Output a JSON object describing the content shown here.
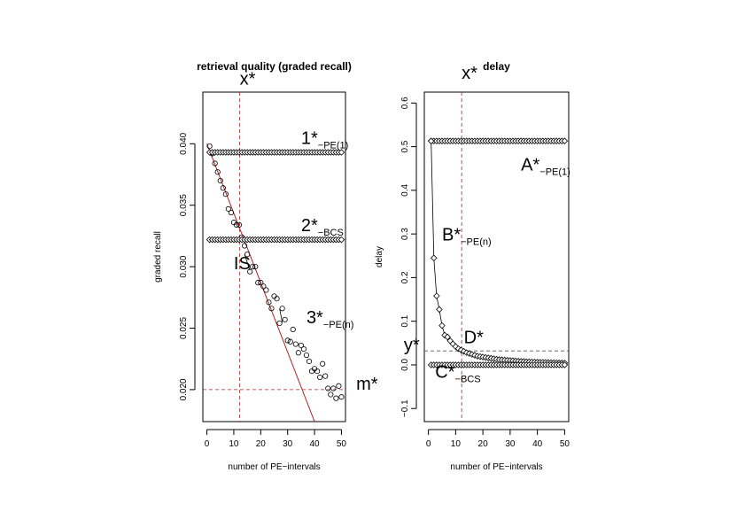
{
  "chart_data": [
    {
      "type": "scatter",
      "title": "retrieval quality (graded recall)",
      "xlabel": "number of PE−intervals",
      "ylabel": "graded recall",
      "xlim": [
        -1.5,
        51.5
      ],
      "ylim": [
        0.0174,
        0.0442
      ],
      "xticks": [
        0,
        10,
        20,
        30,
        40,
        50
      ],
      "yticks": [
        0.02,
        0.025,
        0.03,
        0.035,
        0.04
      ],
      "ytick_labels": [
        "0.020",
        "0.025",
        "0.030",
        "0.035",
        "0.040"
      ],
      "grid": false,
      "series": [
        {
          "marker": "circle",
          "x": [
            1,
            2,
            3,
            4,
            5,
            6,
            7,
            8,
            9,
            10,
            11,
            12,
            13,
            14,
            15,
            16,
            17,
            18,
            19,
            20,
            21,
            22,
            23,
            24,
            25,
            26,
            27,
            28,
            29,
            30,
            31,
            32,
            33,
            34,
            35,
            36,
            37,
            38,
            39,
            40,
            41,
            42,
            43,
            44,
            45,
            46,
            47,
            48,
            49,
            50
          ],
          "y": [
            0.0398,
            0.0392,
            0.0384,
            0.0377,
            0.037,
            0.0364,
            0.0359,
            0.0347,
            0.0344,
            0.0336,
            0.0334,
            0.0334,
            0.0324,
            0.0317,
            0.031,
            0.0296,
            0.03,
            0.03,
            0.0287,
            0.0287,
            0.0284,
            0.0281,
            0.0271,
            0.0266,
            0.0276,
            0.0274,
            0.0254,
            0.0266,
            0.0257,
            0.024,
            0.0239,
            0.0249,
            0.0237,
            0.023,
            0.0236,
            0.0233,
            0.0228,
            0.0223,
            0.0215,
            0.0217,
            0.0215,
            0.021,
            0.0221,
            0.0211,
            0.0201,
            0.0196,
            0.0201,
            0.0193,
            0.0203,
            0.0194
          ]
        },
        {
          "marker": "diamond",
          "x": [
            1,
            2,
            3,
            4,
            5,
            6,
            7,
            8,
            9,
            10,
            11,
            12,
            13,
            14,
            15,
            16,
            17,
            18,
            19,
            20,
            21,
            22,
            23,
            24,
            25,
            26,
            27,
            28,
            29,
            30,
            31,
            32,
            33,
            34,
            35,
            36,
            37,
            38,
            39,
            40,
            41,
            42,
            43,
            44,
            45,
            46,
            47,
            48,
            49,
            50
          ],
          "y": [
            0.0393,
            0.0393,
            0.0393,
            0.0393,
            0.0393,
            0.0393,
            0.0393,
            0.0393,
            0.0393,
            0.0393,
            0.0393,
            0.0393,
            0.0393,
            0.0393,
            0.0393,
            0.0393,
            0.0393,
            0.0393,
            0.0393,
            0.0393,
            0.0393,
            0.0393,
            0.0393,
            0.0393,
            0.0393,
            0.0393,
            0.0393,
            0.0393,
            0.0393,
            0.0393,
            0.0393,
            0.0393,
            0.0393,
            0.0393,
            0.0393,
            0.0393,
            0.0393,
            0.0393,
            0.0393,
            0.0393,
            0.0393,
            0.0393,
            0.0393,
            0.0393,
            0.0393,
            0.0393,
            0.0393,
            0.0393,
            0.0393,
            0.0393
          ]
        },
        {
          "marker": "diamond",
          "x": [
            1,
            2,
            3,
            4,
            5,
            6,
            7,
            8,
            9,
            10,
            11,
            12,
            13,
            14,
            15,
            16,
            17,
            18,
            19,
            20,
            21,
            22,
            23,
            24,
            25,
            26,
            27,
            28,
            29,
            30,
            31,
            32,
            33,
            34,
            35,
            36,
            37,
            38,
            39,
            40,
            41,
            42,
            43,
            44,
            45,
            46,
            47,
            48,
            49,
            50
          ],
          "y": [
            0.0322,
            0.0322,
            0.0322,
            0.0322,
            0.0322,
            0.0322,
            0.0322,
            0.0322,
            0.0322,
            0.0322,
            0.0322,
            0.0322,
            0.0322,
            0.0322,
            0.0322,
            0.0322,
            0.0322,
            0.0322,
            0.0322,
            0.0322,
            0.0322,
            0.0322,
            0.0322,
            0.0322,
            0.0322,
            0.0322,
            0.0322,
            0.0322,
            0.0322,
            0.0322,
            0.0322,
            0.0322,
            0.0322,
            0.0322,
            0.0322,
            0.0322,
            0.0322,
            0.0322,
            0.0322,
            0.0322,
            0.0322,
            0.0322,
            0.0322,
            0.0322,
            0.0322,
            0.0322,
            0.0322,
            0.0322,
            0.0322,
            0.0322
          ]
        }
      ],
      "fit_line": {
        "color": "#b22222",
        "x": [
          0,
          40
        ],
        "y": [
          0.04,
          0.0174
        ]
      },
      "connector_segments": [
        {
          "x": [
            14,
            16
          ],
          "y": [
            0.031,
            0.0297
          ]
        },
        {
          "x": [
            27,
            28
          ],
          "y": [
            0.0266,
            0.0255
          ]
        }
      ],
      "vline": {
        "x": 12.2,
        "color": "#b22222",
        "dash": true
      },
      "hline": {
        "y": 0.02,
        "color": "#b22222",
        "dash": true
      },
      "annotations": [
        {
          "main": "x*",
          "sub": "",
          "x": 12.2,
          "y": 0.0448
        },
        {
          "main": "1*",
          "sub": "−PE(1)",
          "x": 35,
          "y": 0.04
        },
        {
          "main": "2*",
          "sub": "−BCS",
          "x": 35,
          "y": 0.0329
        },
        {
          "main": "IS",
          "sub": "",
          "x": 10,
          "y": 0.0298
        },
        {
          "main": "3*",
          "sub": "−PE(n)",
          "x": 37,
          "y": 0.0254
        },
        {
          "main": "m*",
          "sub": "",
          "x": 55.5,
          "y": 0.02
        }
      ]
    },
    {
      "type": "scatter",
      "title": "delay",
      "xlabel": "number of PE−intervals",
      "ylabel": "delay",
      "xlim": [
        -1.5,
        51.5
      ],
      "ylim": [
        -0.13,
        0.625
      ],
      "xticks": [
        0,
        10,
        20,
        30,
        40,
        50
      ],
      "yticks": [
        -0.1,
        0.0,
        0.1,
        0.2,
        0.3,
        0.4,
        0.5,
        0.6
      ],
      "ytick_labels": [
        "−0.1",
        "0.0",
        "0.1",
        "0.2",
        "0.3",
        "0.4",
        "0.5",
        "0.6"
      ],
      "grid": false,
      "series": [
        {
          "marker": "diamond",
          "x": [
            1,
            2,
            3,
            4,
            5,
            6,
            7,
            8,
            9,
            10,
            11,
            12,
            13,
            14,
            15,
            16,
            17,
            18,
            19,
            20,
            21,
            22,
            23,
            24,
            25,
            26,
            27,
            28,
            29,
            30,
            31,
            32,
            33,
            34,
            35,
            36,
            37,
            38,
            39,
            40,
            41,
            42,
            43,
            44,
            45,
            46,
            47,
            48,
            49,
            50
          ],
          "y": [
            0.513,
            0.513,
            0.513,
            0.513,
            0.513,
            0.513,
            0.513,
            0.513,
            0.513,
            0.513,
            0.513,
            0.513,
            0.513,
            0.513,
            0.513,
            0.513,
            0.513,
            0.513,
            0.513,
            0.513,
            0.513,
            0.513,
            0.513,
            0.513,
            0.513,
            0.513,
            0.513,
            0.513,
            0.513,
            0.513,
            0.513,
            0.513,
            0.513,
            0.513,
            0.513,
            0.513,
            0.513,
            0.513,
            0.513,
            0.513,
            0.513,
            0.513,
            0.513,
            0.513,
            0.513,
            0.513,
            0.513,
            0.513,
            0.513,
            0.513
          ]
        },
        {
          "marker": "diamond",
          "x": [
            1,
            2,
            3,
            4,
            5,
            6,
            7,
            8,
            9,
            10,
            11,
            12,
            13,
            14,
            15,
            16,
            17,
            18,
            19,
            20,
            21,
            22,
            23,
            24,
            25,
            26,
            27,
            28,
            29,
            30,
            31,
            32,
            33,
            34,
            35,
            36,
            37,
            38,
            39,
            40,
            41,
            42,
            43,
            44,
            45,
            46,
            47,
            48,
            49,
            50
          ],
          "y": [
            0.513,
            0.245,
            0.158,
            0.127,
            0.09,
            0.068,
            0.064,
            0.055,
            0.048,
            0.042,
            0.037,
            0.034,
            0.031,
            0.028,
            0.026,
            0.024,
            0.022,
            0.02,
            0.019,
            0.018,
            0.017,
            0.016,
            0.015,
            0.014,
            0.013,
            0.012,
            0.0115,
            0.011,
            0.0105,
            0.01,
            0.0095,
            0.009,
            0.0085,
            0.008,
            0.0077,
            0.0074,
            0.0071,
            0.0068,
            0.0065,
            0.0062,
            0.006,
            0.0058,
            0.0056,
            0.0054,
            0.0052,
            0.005,
            0.0048,
            0.0046,
            0.0044,
            0.0042
          ]
        },
        {
          "marker": "diamond",
          "x": [
            1,
            2,
            3,
            4,
            5,
            6,
            7,
            8,
            9,
            10,
            11,
            12,
            13,
            14,
            15,
            16,
            17,
            18,
            19,
            20,
            21,
            22,
            23,
            24,
            25,
            26,
            27,
            28,
            29,
            30,
            31,
            32,
            33,
            34,
            35,
            36,
            37,
            38,
            39,
            40,
            41,
            42,
            43,
            44,
            45,
            46,
            47,
            48,
            49,
            50
          ],
          "y": [
            0.0,
            0.0,
            0.0,
            0.0,
            0.0,
            0.0,
            0.0,
            0.0,
            0.0,
            0.0,
            0.0,
            0.0,
            0.0,
            0.0,
            0.0,
            0.0,
            0.0,
            0.0,
            0.0,
            0.0,
            0.0,
            0.0,
            0.0,
            0.0,
            0.0,
            0.0,
            0.0,
            0.0,
            0.0,
            0.0,
            0.0,
            0.0,
            0.0,
            0.0,
            0.0,
            0.0,
            0.0,
            0.0,
            0.0,
            0.0,
            0.0,
            0.0,
            0.0,
            0.0,
            0.0,
            0.0,
            0.0,
            0.0,
            0.0,
            0.0
          ]
        }
      ],
      "connect_series": 1,
      "vline": {
        "x": 12.2,
        "color": "#b22222",
        "dash": true
      },
      "hline": {
        "y": 0.032,
        "color": "#555555",
        "dash": true
      },
      "annotations": [
        {
          "main": "x*",
          "sub": "",
          "x": 12.2,
          "y": 0.655
        },
        {
          "main": "A*",
          "sub": "−PE(1)",
          "x": 34,
          "y": 0.445
        },
        {
          "main": "B*",
          "sub": "−PE(n)",
          "x": 5,
          "y": 0.285
        },
        {
          "main": "y*",
          "sub": "",
          "x": -9,
          "y": 0.032
        },
        {
          "main": "D*",
          "sub": "",
          "x": 13,
          "y": 0.05
        },
        {
          "main": "C*",
          "sub": "−BCS",
          "x": 2.5,
          "y": -0.03
        }
      ]
    }
  ]
}
